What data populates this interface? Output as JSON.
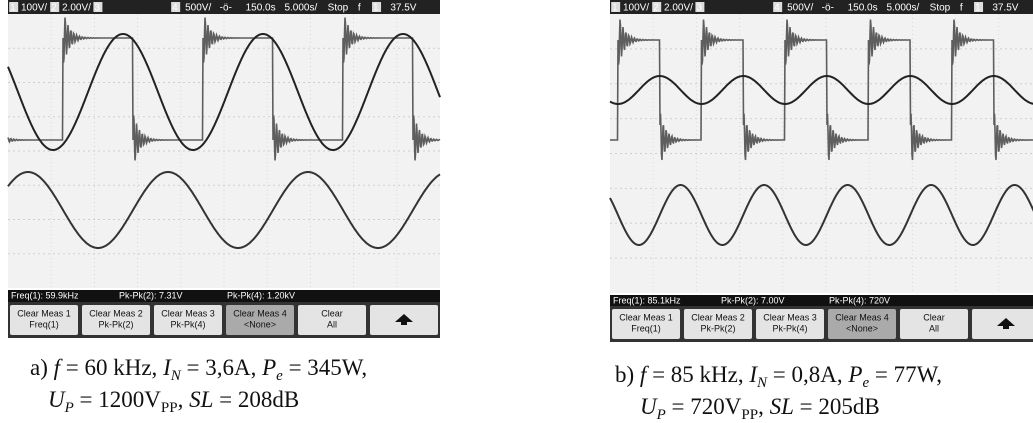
{
  "panels": [
    {
      "status": [
        "1",
        "100V/",
        "2",
        "2.00V/",
        "3",
        "4",
        "500V/",
        "-ö-",
        "150.0s",
        "5.000s/",
        "Stop",
        "f",
        "1",
        "37.5V"
      ],
      "measurements": [
        "Freq(1): 59.9kHz",
        "Pk-Pk(2): 7.31V",
        "Pk-Pk(4): 1.20kV"
      ],
      "softkeys": [
        [
          "Clear Meas 1",
          "Freq(1)"
        ],
        [
          "Clear Meas 2",
          "Pk-Pk(2)"
        ],
        [
          "Clear Meas 3",
          "Pk-Pk(4)"
        ],
        [
          "Clear Meas 4",
          "<None>"
        ],
        [
          "Clear",
          "All"
        ]
      ],
      "caption": [
        [
          "a) ",
          "f",
          " = 60 kHz, ",
          "I",
          "N",
          " = 3,6A, ",
          "P",
          "e",
          " = 345W,"
        ],
        [
          "U",
          "P",
          " = 1200V",
          "PP",
          ", ",
          "SL",
          " = 208dB"
        ]
      ]
    },
    {
      "status": [
        "1",
        "100V/",
        "2",
        "2.00V/",
        "3",
        "4",
        "500V/",
        "-ö-",
        "150.0s",
        "5.000s/",
        "Stop",
        "f",
        "1",
        "37.5V"
      ],
      "measurements": [
        "Freq(1): 85.1kHz",
        "Pk-Pk(2): 7.00V",
        "Pk-Pk(4): 720V"
      ],
      "softkeys": [
        [
          "Clear Meas 1",
          "Freq(1)"
        ],
        [
          "Clear Meas 2",
          "Pk-Pk(2)"
        ],
        [
          "Clear Meas 3",
          "Pk-Pk(4)"
        ],
        [
          "Clear Meas 4",
          "<None>"
        ],
        [
          "Clear",
          "All"
        ]
      ],
      "caption": [
        [
          "b) ",
          "f",
          " = 85 kHz, ",
          "I",
          "N",
          " = 0,8A, ",
          "P",
          "e",
          " = 77W,"
        ],
        [
          "U",
          "P",
          " = 720V",
          "PP",
          ", ",
          "SL",
          " = 205dB"
        ]
      ]
    }
  ]
}
